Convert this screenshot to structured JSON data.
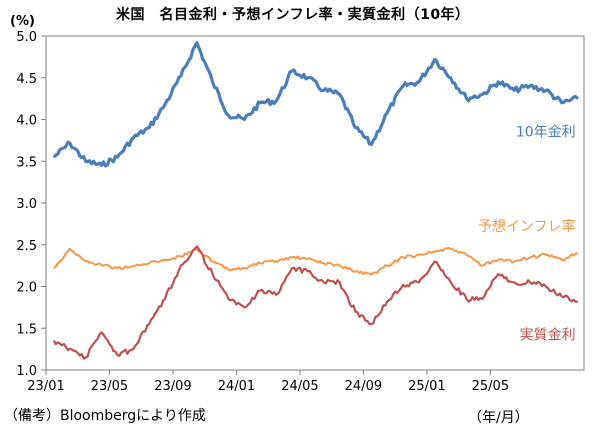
{
  "title": "米国　名目金利・予想インフレ率・実質金利（10年）",
  "y_unit": "(%)",
  "source": "（備考）Bloombergにより作成",
  "x_unit": "（年/月）",
  "chart_data": {
    "type": "line",
    "title": "米国　名目金利・予想インフレ率・実質金利（10年）",
    "ylabel": "(%)",
    "xlabel": "（年/月）",
    "ylim": [
      1.0,
      5.0
    ],
    "yticks": [
      "1.0",
      "1.5",
      "2.0",
      "2.5",
      "3.0",
      "3.5",
      "4.0",
      "4.5",
      "5.0"
    ],
    "xlim": [
      "2023-01",
      "2025-10"
    ],
    "xticks": [
      "23/01",
      "23/05",
      "23/09",
      "24/01",
      "24/05",
      "24/09",
      "25/01",
      "25/05"
    ],
    "grid": false,
    "x": [
      "2023-01",
      "2023-02",
      "2023-03",
      "2023-04",
      "2023-05",
      "2023-06",
      "2023-07",
      "2023-08",
      "2023-09",
      "2023-10",
      "2023-11",
      "2023-12",
      "2024-01",
      "2024-02",
      "2024-03",
      "2024-04",
      "2024-05",
      "2024-06",
      "2024-07",
      "2024-08",
      "2024-09",
      "2024-10",
      "2024-11",
      "2024-12",
      "2025-01",
      "2025-02",
      "2025-03",
      "2025-04",
      "2025-05",
      "2025-06",
      "2025-07",
      "2025-08",
      "2025-09",
      "2025-10"
    ],
    "series": [
      {
        "name": "10年金利",
        "color": "#4a7ebb",
        "label_position": "right, below line",
        "values": [
          3.55,
          3.72,
          3.5,
          3.45,
          3.55,
          3.78,
          3.9,
          4.18,
          4.52,
          4.92,
          4.45,
          4.05,
          4.0,
          4.2,
          4.22,
          4.58,
          4.5,
          4.35,
          4.3,
          3.9,
          3.7,
          4.08,
          4.4,
          4.45,
          4.72,
          4.5,
          4.25,
          4.3,
          4.45,
          4.35,
          4.4,
          4.35,
          4.2,
          4.25
        ]
      },
      {
        "name": "予想インフレ率",
        "color": "#f79646",
        "label_position": "right, above line",
        "values": [
          2.22,
          2.45,
          2.3,
          2.26,
          2.22,
          2.24,
          2.28,
          2.32,
          2.36,
          2.45,
          2.3,
          2.2,
          2.22,
          2.28,
          2.3,
          2.35,
          2.33,
          2.28,
          2.25,
          2.18,
          2.14,
          2.25,
          2.35,
          2.38,
          2.42,
          2.45,
          2.38,
          2.25,
          2.32,
          2.3,
          2.35,
          2.38,
          2.32,
          2.4
        ]
      },
      {
        "name": "実質金利",
        "color": "#c0504d",
        "label_position": "right, below line",
        "values": [
          1.35,
          1.25,
          1.15,
          1.45,
          1.18,
          1.25,
          1.55,
          1.85,
          2.25,
          2.48,
          2.15,
          1.85,
          1.75,
          1.95,
          1.9,
          2.22,
          2.18,
          2.05,
          2.05,
          1.7,
          1.55,
          1.82,
          2.02,
          2.05,
          2.3,
          2.05,
          1.85,
          1.85,
          2.15,
          2.05,
          2.05,
          2.0,
          1.88,
          1.82
        ]
      }
    ]
  }
}
